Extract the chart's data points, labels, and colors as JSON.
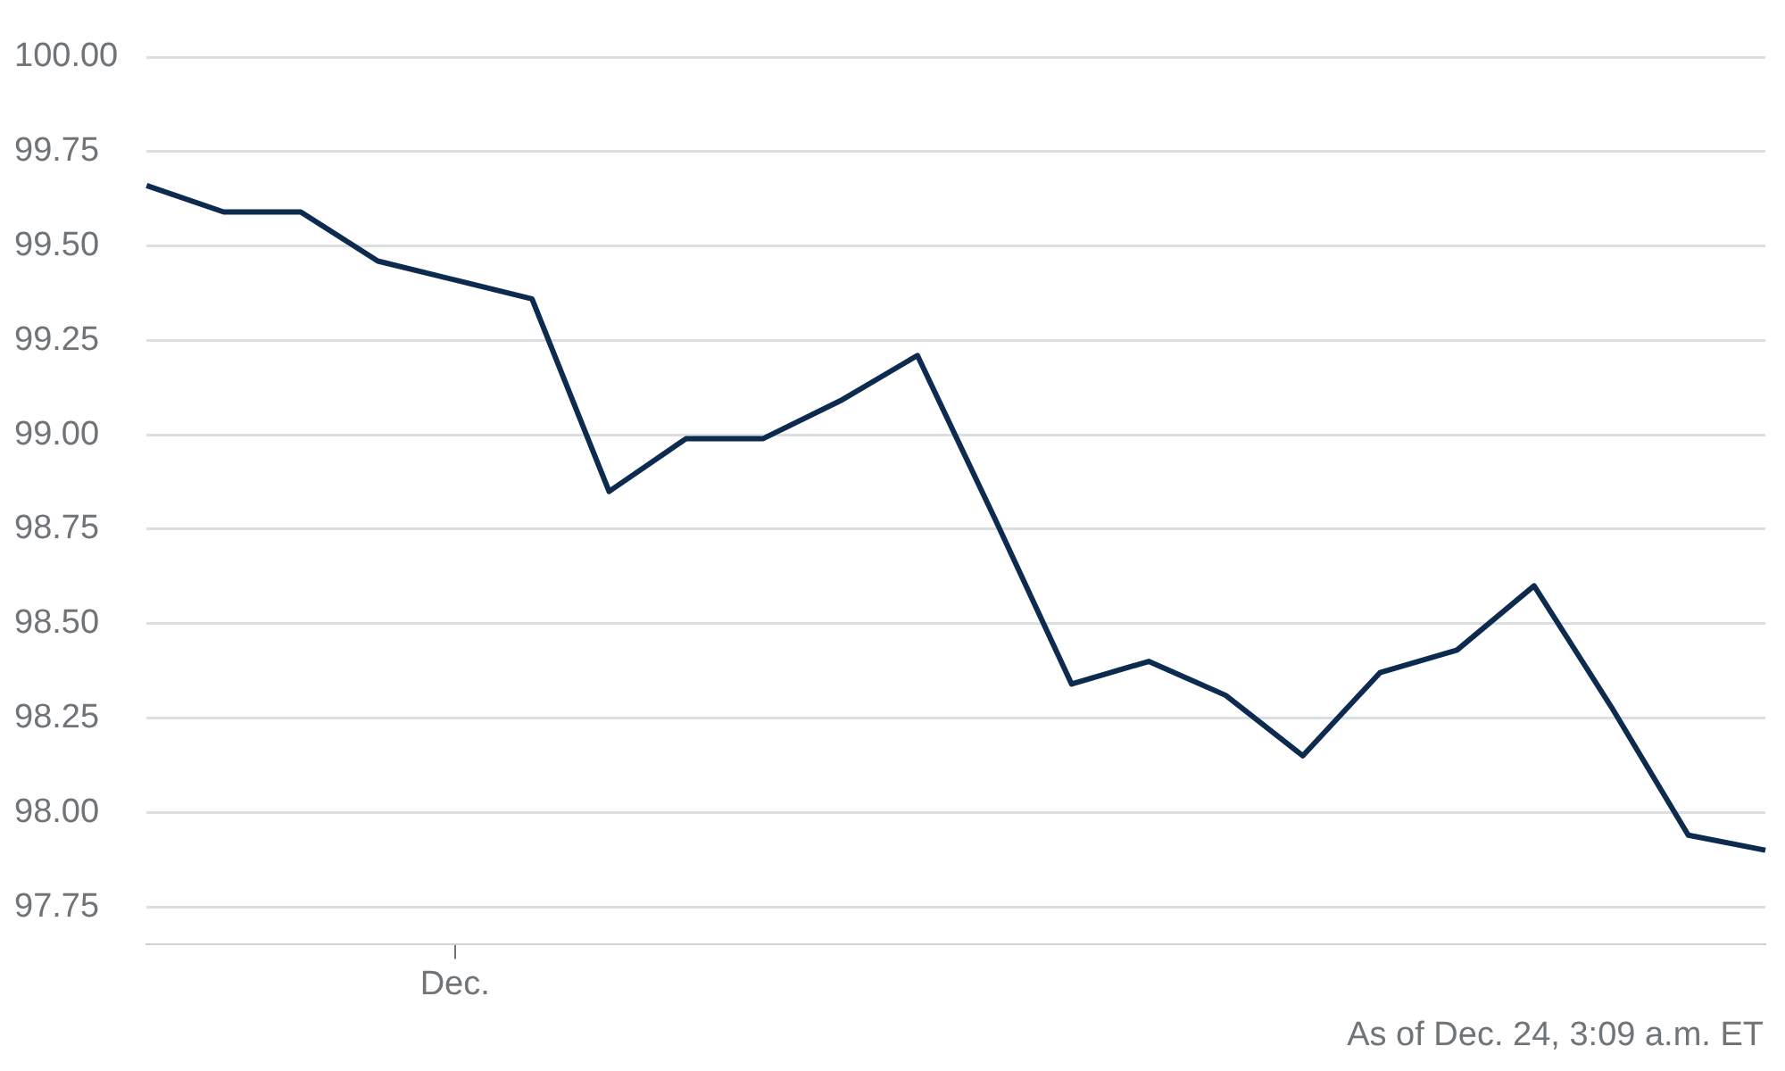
{
  "chart_data": {
    "type": "line",
    "categories": [
      null,
      null,
      null,
      null,
      "Dec.",
      null,
      null,
      null,
      null,
      null,
      null,
      null,
      null,
      null,
      null,
      null,
      null,
      null,
      null,
      null,
      null,
      null
    ],
    "series": [
      {
        "color": "#0d2a4f",
        "values": [
          99.66,
          99.59,
          99.59,
          99.46,
          99.41,
          99.36,
          98.85,
          98.99,
          98.99,
          99.09,
          99.21,
          98.78,
          98.34,
          98.4,
          98.31,
          98.15,
          98.37,
          98.43,
          98.6,
          98.28,
          97.94,
          97.9
        ]
      }
    ],
    "ylim": [
      97.65,
      100
    ],
    "yticks": [
      {
        "value": 97.75,
        "label": "97.75"
      },
      {
        "value": 98,
        "label": "98.00"
      },
      {
        "value": 98.25,
        "label": "98.25"
      },
      {
        "value": 98.5,
        "label": "98.50"
      },
      {
        "value": 98.75,
        "label": "98.75"
      },
      {
        "value": 99,
        "label": "99.00"
      },
      {
        "value": 99.25,
        "label": "99.25"
      },
      {
        "value": 99.5,
        "label": "99.50"
      },
      {
        "value": 99.75,
        "label": "99.75"
      },
      {
        "value": 100,
        "label": "100.00"
      }
    ],
    "grid": "y",
    "marker": "none",
    "line_style": "solid",
    "legend": false,
    "annotations": [
      "As of Dec. 24, 3:09 a.m. ET"
    ]
  }
}
